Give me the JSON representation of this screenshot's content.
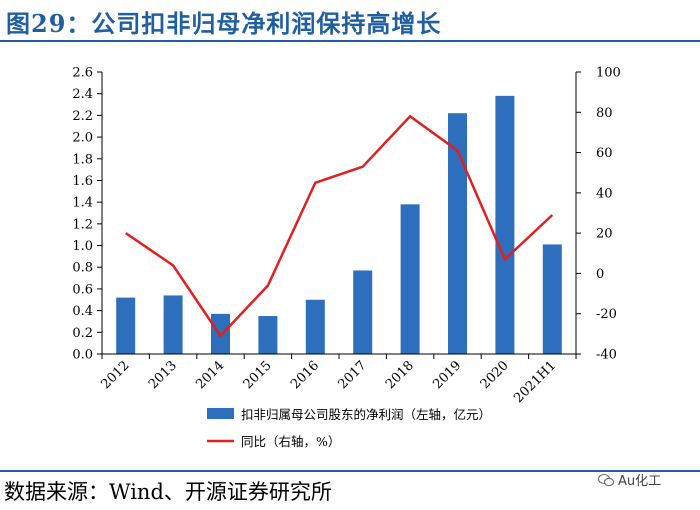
{
  "header": {
    "title": "图29：公司扣非归母净利润保持高增长"
  },
  "footer": {
    "source": "数据来源：Wind、开源证券研究所",
    "watermark": "Au化工"
  },
  "colors": {
    "bar": "#2e6fbd",
    "line": "#e02020",
    "title": "#1f5f9f"
  },
  "chart_data": {
    "type": "bar",
    "title": "",
    "categories": [
      "2012",
      "2013",
      "2014",
      "2015",
      "2016",
      "2017",
      "2018",
      "2019",
      "2020",
      "2021H1"
    ],
    "series": [
      {
        "name": "扣非归属母公司股东的净利润（左轴，亿元）",
        "type": "bar",
        "axis": "left",
        "values": [
          0.52,
          0.54,
          0.37,
          0.35,
          0.5,
          0.77,
          1.38,
          2.22,
          2.38,
          1.01
        ]
      },
      {
        "name": "同比（右轴，%）",
        "type": "line",
        "axis": "right",
        "values": [
          20,
          4,
          -31,
          -6,
          45,
          53,
          78,
          61,
          7,
          29
        ]
      }
    ],
    "y_left": {
      "min": 0,
      "max": 2.6,
      "ticks": [
        "0.0",
        "0.2",
        "0.4",
        "0.6",
        "0.8",
        "1.0",
        "1.2",
        "1.4",
        "1.6",
        "1.8",
        "2.0",
        "2.2",
        "2.4",
        "2.6"
      ]
    },
    "y_right": {
      "min": -40,
      "max": 100,
      "ticks": [
        "-40",
        "-20",
        "0",
        "20",
        "40",
        "60",
        "80",
        "100"
      ]
    },
    "grid": false,
    "legend_position": "bottom"
  }
}
